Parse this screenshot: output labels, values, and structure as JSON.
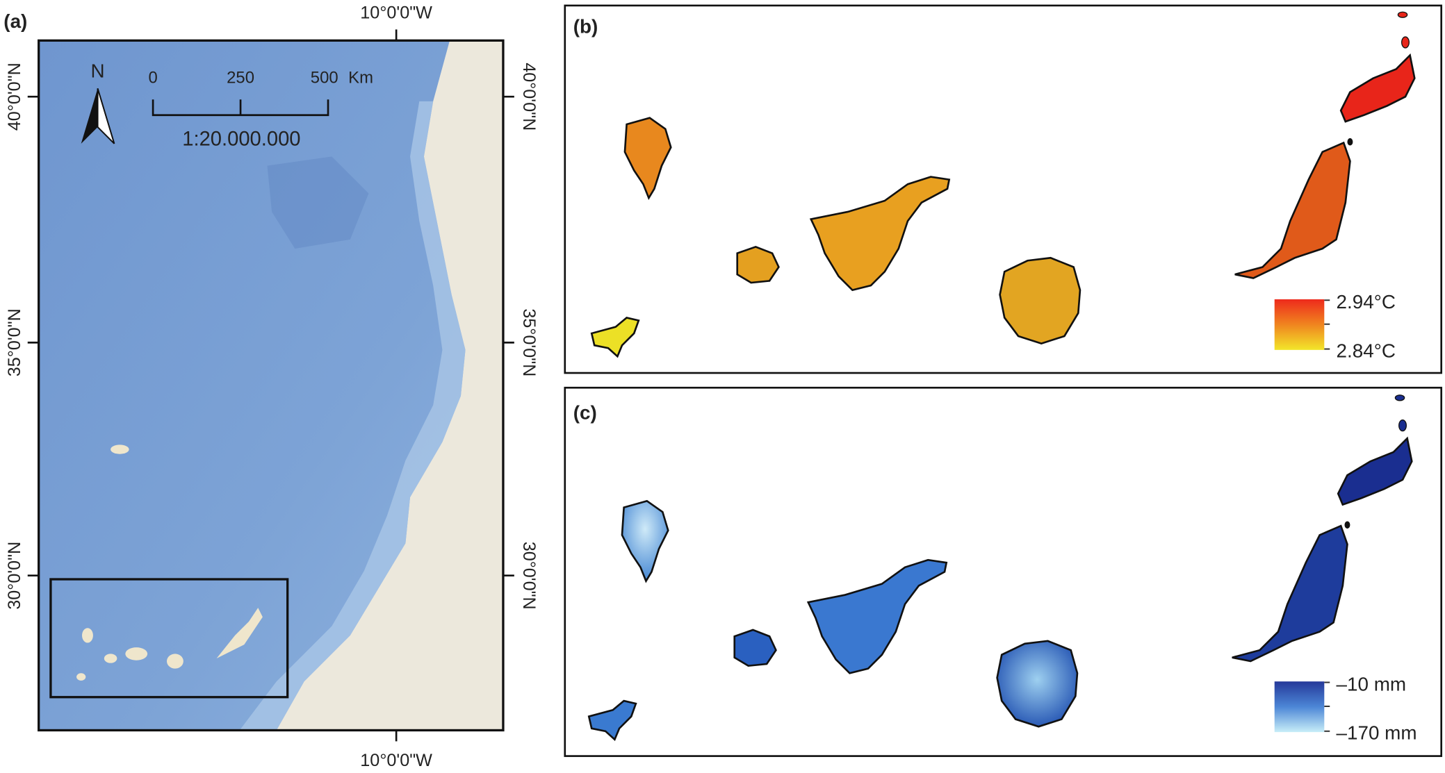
{
  "panel_a": {
    "label": "(a)",
    "lon_label_top": "10°0'0\"W",
    "lon_label_bottom": "10°0'0\"W",
    "lat_labels_left": [
      "40°0'0\"N",
      "35°0'0\"N",
      "30°0'0\"N"
    ],
    "lat_labels_right": [
      "40°0'0\"N",
      "35°0'0\"N",
      "30°0'0\"N"
    ],
    "north_arrow": "N",
    "scale_bar": {
      "ticks": [
        "0",
        "250",
        "500"
      ],
      "unit": "Km",
      "ratio": "1:20.000.000"
    }
  },
  "panel_b": {
    "label": "(b)",
    "legend": {
      "max": "2.94°C",
      "min": "2.84°C"
    }
  },
  "panel_c": {
    "label": "(c)",
    "legend": {
      "max": "–10 mm",
      "min": "–170 mm"
    }
  }
}
